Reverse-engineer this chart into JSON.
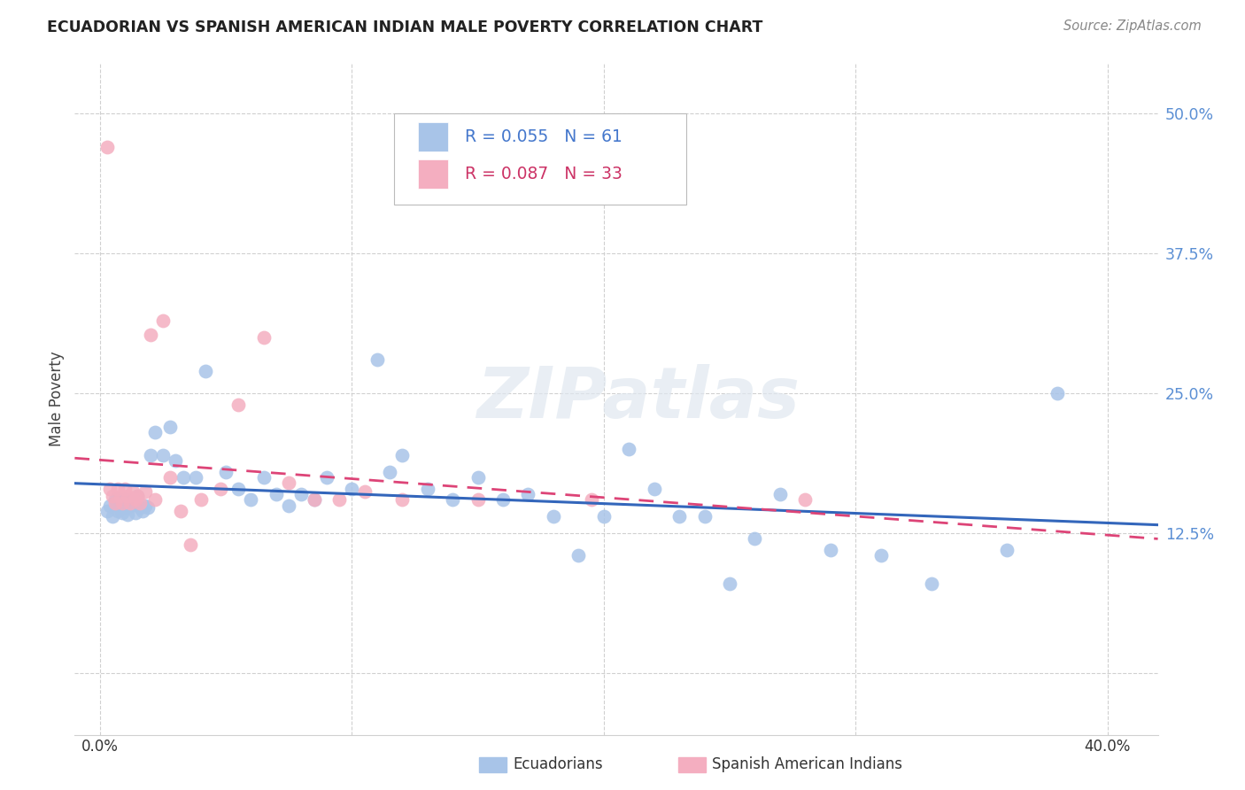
{
  "title": "ECUADORIAN VS SPANISH AMERICAN INDIAN MALE POVERTY CORRELATION CHART",
  "source": "Source: ZipAtlas.com",
  "ylabel": "Male Poverty",
  "ytick_vals": [
    0.0,
    0.125,
    0.25,
    0.375,
    0.5
  ],
  "ytick_labels": [
    "",
    "12.5%",
    "25.0%",
    "37.5%",
    "50.0%"
  ],
  "xtick_vals": [
    0.0,
    0.1,
    0.2,
    0.3,
    0.4
  ],
  "xtick_labels": [
    "0.0%",
    "",
    "",
    "",
    "40.0%"
  ],
  "xlim": [
    -0.01,
    0.42
  ],
  "ylim": [
    -0.055,
    0.545
  ],
  "blue_R": "0.055",
  "blue_N": "61",
  "pink_R": "0.087",
  "pink_N": "33",
  "blue_color": "#a8c4e8",
  "blue_line_color": "#3366bb",
  "pink_color": "#f4aec0",
  "pink_line_color": "#dd4477",
  "watermark": "ZIPatlas",
  "legend_label_blue": "Ecuadorians",
  "legend_label_pink": "Spanish American Indians",
  "blue_scatter_x": [
    0.003,
    0.004,
    0.005,
    0.006,
    0.007,
    0.007,
    0.008,
    0.008,
    0.009,
    0.01,
    0.01,
    0.011,
    0.012,
    0.013,
    0.014,
    0.015,
    0.016,
    0.017,
    0.018,
    0.019,
    0.02,
    0.022,
    0.025,
    0.028,
    0.03,
    0.033,
    0.038,
    0.042,
    0.05,
    0.055,
    0.06,
    0.065,
    0.07,
    0.075,
    0.08,
    0.085,
    0.09,
    0.1,
    0.11,
    0.115,
    0.12,
    0.13,
    0.14,
    0.15,
    0.16,
    0.17,
    0.18,
    0.19,
    0.2,
    0.21,
    0.22,
    0.23,
    0.24,
    0.25,
    0.26,
    0.27,
    0.29,
    0.31,
    0.33,
    0.36,
    0.38
  ],
  "blue_scatter_y": [
    0.145,
    0.15,
    0.14,
    0.155,
    0.145,
    0.155,
    0.148,
    0.152,
    0.143,
    0.155,
    0.148,
    0.142,
    0.15,
    0.155,
    0.143,
    0.158,
    0.148,
    0.145,
    0.15,
    0.148,
    0.195,
    0.215,
    0.195,
    0.22,
    0.19,
    0.175,
    0.175,
    0.27,
    0.18,
    0.165,
    0.155,
    0.175,
    0.16,
    0.15,
    0.16,
    0.155,
    0.175,
    0.165,
    0.28,
    0.18,
    0.195,
    0.165,
    0.155,
    0.175,
    0.155,
    0.16,
    0.14,
    0.105,
    0.14,
    0.2,
    0.165,
    0.14,
    0.14,
    0.08,
    0.12,
    0.16,
    0.11,
    0.105,
    0.08,
    0.11,
    0.25
  ],
  "pink_scatter_x": [
    0.003,
    0.004,
    0.005,
    0.006,
    0.007,
    0.008,
    0.009,
    0.01,
    0.011,
    0.012,
    0.013,
    0.014,
    0.015,
    0.016,
    0.018,
    0.02,
    0.022,
    0.025,
    0.028,
    0.032,
    0.036,
    0.04,
    0.048,
    0.055,
    0.065,
    0.075,
    0.085,
    0.095,
    0.105,
    0.12,
    0.15,
    0.195,
    0.28
  ],
  "pink_scatter_y": [
    0.47,
    0.165,
    0.158,
    0.152,
    0.165,
    0.158,
    0.152,
    0.165,
    0.158,
    0.152,
    0.162,
    0.155,
    0.158,
    0.152,
    0.162,
    0.302,
    0.155,
    0.315,
    0.175,
    0.145,
    0.115,
    0.155,
    0.165,
    0.24,
    0.3,
    0.17,
    0.155,
    0.155,
    0.162,
    0.155,
    0.155,
    0.155,
    0.155
  ]
}
